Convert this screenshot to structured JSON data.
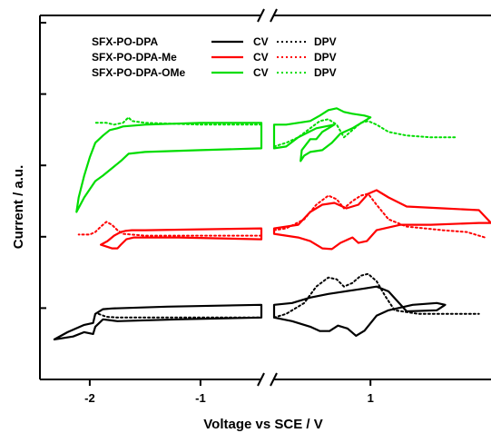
{
  "chart_data": {
    "type": "line",
    "title": "",
    "xlabel": "Voltage vs SCE / V",
    "ylabel": "Current / a.u.",
    "x_axis_break": [
      -0.45,
      0.2
    ],
    "xticks": [
      {
        "value": -2,
        "label": "-2"
      },
      {
        "value": -1,
        "label": "-1"
      },
      {
        "value": 1,
        "label": "1"
      }
    ],
    "y_ticks_count": 5,
    "legend": {
      "placement": "top-left",
      "entries": [
        {
          "compound": "SFX-PO-DPA",
          "color": "#000000",
          "cv_label": "CV",
          "dpv_label": "DPV"
        },
        {
          "compound": "SFX-PO-DPA-Me",
          "color": "#ff0000",
          "cv_label": "CV",
          "dpv_label": "DPV"
        },
        {
          "compound": "SFX-PO-DPA-OMe",
          "color": "#00dd00",
          "cv_label": "CV",
          "dpv_label": "DPV"
        }
      ]
    },
    "series": [
      {
        "name": "SFX-PO-DPA CV",
        "color": "#000000",
        "style": "solid",
        "closed": true,
        "x": [
          -0.45,
          -1.2,
          -1.75,
          -1.88,
          -1.95,
          -1.97,
          -2.05,
          -2.15,
          -2.32,
          -2.2,
          -2.05,
          -1.97,
          -1.95,
          -1.88,
          -1.8,
          -1.3,
          -0.45
        ],
        "y": [
          0.17,
          0.165,
          0.16,
          0.165,
          0.145,
          0.125,
          0.13,
          0.118,
          0.11,
          0.13,
          0.15,
          0.155,
          0.18,
          0.193,
          0.195,
          0.2,
          0.205
        ]
      },
      {
        "name": "SFX-PO-DPA CV",
        "color": "#000000",
        "style": "solid",
        "closed": true,
        "x": [
          0.2,
          0.35,
          0.5,
          0.58,
          0.66,
          0.73,
          0.81,
          0.88,
          0.95,
          1.05,
          1.15,
          1.35,
          1.55,
          1.62,
          1.55,
          1.3,
          1.15,
          1.05,
          0.95,
          0.85,
          0.75,
          0.65,
          0.5,
          0.35,
          0.2
        ],
        "y": [
          0.17,
          0.16,
          0.145,
          0.133,
          0.133,
          0.148,
          0.14,
          0.12,
          0.134,
          0.175,
          0.19,
          0.205,
          0.21,
          0.205,
          0.19,
          0.187,
          0.242,
          0.255,
          0.25,
          0.245,
          0.24,
          0.235,
          0.225,
          0.21,
          0.205
        ]
      },
      {
        "name": "SFX-PO-DPA DPV",
        "color": "#000000",
        "style": "dotted",
        "x": [
          -1.92,
          -1.85,
          -1.75,
          -1.3,
          -0.45
        ],
        "y": [
          0.18,
          0.172,
          0.17,
          0.17,
          0.17
        ]
      },
      {
        "name": "SFX-PO-DPA DPV",
        "color": "#000000",
        "style": "dotted",
        "x": [
          0.2,
          0.3,
          0.45,
          0.55,
          0.65,
          0.72,
          0.78,
          0.85,
          0.92,
          0.98,
          1.05,
          1.12,
          1.2,
          1.4,
          1.6,
          1.9
        ],
        "y": [
          0.17,
          0.18,
          0.21,
          0.255,
          0.28,
          0.275,
          0.255,
          0.265,
          0.285,
          0.29,
          0.27,
          0.23,
          0.19,
          0.18,
          0.18,
          0.18
        ]
      },
      {
        "name": "SFX-PO-DPA-Me CV",
        "color": "#ff0000",
        "style": "solid",
        "closed": true,
        "x": [
          -0.45,
          -1.2,
          -1.6,
          -1.67,
          -1.72,
          -1.75,
          -1.8,
          -1.9,
          -1.84,
          -1.78,
          -1.72,
          -1.68,
          -1.62,
          -1.5,
          -0.45
        ],
        "y": [
          0.385,
          0.39,
          0.39,
          0.385,
          0.37,
          0.36,
          0.36,
          0.37,
          0.38,
          0.395,
          0.405,
          0.408,
          0.41,
          0.41,
          0.415
        ]
      },
      {
        "name": "SFX-PO-DPA-Me CV",
        "color": "#ff0000",
        "style": "solid",
        "closed": true,
        "x": [
          0.2,
          0.4,
          0.5,
          0.6,
          0.68,
          0.75,
          0.85,
          0.9,
          0.97,
          1.05,
          1.25,
          1.5,
          1.9,
          2.0,
          1.9,
          1.6,
          1.3,
          1.15,
          1.05,
          0.98,
          0.9,
          0.8,
          0.7,
          0.6,
          0.5,
          0.4,
          0.2
        ],
        "y": [
          0.4,
          0.39,
          0.38,
          0.36,
          0.358,
          0.375,
          0.39,
          0.375,
          0.38,
          0.41,
          0.425,
          0.425,
          0.43,
          0.43,
          0.465,
          0.47,
          0.475,
          0.5,
          0.52,
          0.51,
          0.48,
          0.47,
          0.485,
          0.48,
          0.46,
          0.425,
          0.415
        ]
      },
      {
        "name": "SFX-PO-DPA-Me DPV",
        "color": "#ff0000",
        "style": "dotted",
        "x": [
          -0.45,
          -1.5,
          -1.7,
          -1.75,
          -1.8,
          -1.85,
          -1.9,
          -1.95,
          -2.0,
          -2.1
        ],
        "y": [
          0.395,
          0.395,
          0.4,
          0.41,
          0.425,
          0.433,
          0.42,
          0.405,
          0.398,
          0.398
        ]
      },
      {
        "name": "SFX-PO-DPA-Me DPV",
        "color": "#ff0000",
        "style": "dotted",
        "x": [
          0.2,
          0.3,
          0.45,
          0.55,
          0.65,
          0.72,
          0.78,
          0.85,
          0.92,
          0.98,
          1.05,
          1.15,
          1.3,
          1.6,
          1.8,
          1.95
        ],
        "y": [
          0.41,
          0.415,
          0.44,
          0.48,
          0.505,
          0.495,
          0.47,
          0.49,
          0.505,
          0.51,
          0.48,
          0.44,
          0.42,
          0.41,
          0.405,
          0.39
        ]
      },
      {
        "name": "SFX-PO-DPA-OMe CV",
        "color": "#00dd00",
        "style": "solid",
        "closed": true,
        "x": [
          -0.45,
          -1.0,
          -1.5,
          -1.65,
          -1.72,
          -1.8,
          -1.88,
          -1.95,
          -2.05,
          -2.12,
          -2.1,
          -2.05,
          -2.0,
          -1.95,
          -1.88,
          -1.82,
          -1.75,
          -1.7,
          -1.5,
          -1.0,
          -0.45
        ],
        "y": [
          0.635,
          0.63,
          0.625,
          0.62,
          0.6,
          0.58,
          0.56,
          0.545,
          0.5,
          0.46,
          0.5,
          0.56,
          0.61,
          0.65,
          0.67,
          0.685,
          0.69,
          0.695,
          0.7,
          0.705,
          0.705
        ]
      },
      {
        "name": "SFX-PO-DPA-OMe CV",
        "color": "#00dd00",
        "style": "solid",
        "closed": true,
        "x": [
          0.2,
          0.3,
          0.4,
          0.5,
          0.58,
          0.65,
          0.72,
          0.78,
          0.85,
          0.95,
          1.0,
          0.95,
          0.85,
          0.75,
          0.68,
          0.6,
          0.5,
          0.45,
          0.42,
          0.43,
          0.5,
          0.55,
          0.6,
          0.65,
          0.7,
          0.55,
          0.4,
          0.3,
          0.2
        ],
        "y": [
          0.7,
          0.7,
          0.705,
          0.71,
          0.725,
          0.74,
          0.745,
          0.735,
          0.73,
          0.725,
          0.72,
          0.71,
          0.69,
          0.675,
          0.65,
          0.63,
          0.625,
          0.615,
          0.6,
          0.63,
          0.66,
          0.66,
          0.68,
          0.69,
          0.7,
          0.69,
          0.665,
          0.64,
          0.635
        ]
      },
      {
        "name": "SFX-PO-DPA-OMe DPV",
        "color": "#00dd00",
        "style": "dotted",
        "x": [
          -0.45,
          -1.0,
          -1.5,
          -1.62,
          -1.65,
          -1.7,
          -1.78,
          -1.85,
          -1.95
        ],
        "y": [
          0.7,
          0.7,
          0.705,
          0.71,
          0.72,
          0.705,
          0.7,
          0.705,
          0.705
        ]
      },
      {
        "name": "SFX-PO-DPA-OMe DPV",
        "color": "#00dd00",
        "style": "dotted",
        "x": [
          0.2,
          0.3,
          0.4,
          0.5,
          0.58,
          0.65,
          0.72,
          0.78,
          0.85,
          0.92,
          0.98,
          1.05,
          1.15,
          1.3,
          1.5,
          1.7
        ],
        "y": [
          0.64,
          0.65,
          0.665,
          0.69,
          0.71,
          0.715,
          0.7,
          0.665,
          0.685,
          0.705,
          0.71,
          0.7,
          0.68,
          0.67,
          0.665,
          0.665
        ]
      }
    ],
    "grid": false
  }
}
